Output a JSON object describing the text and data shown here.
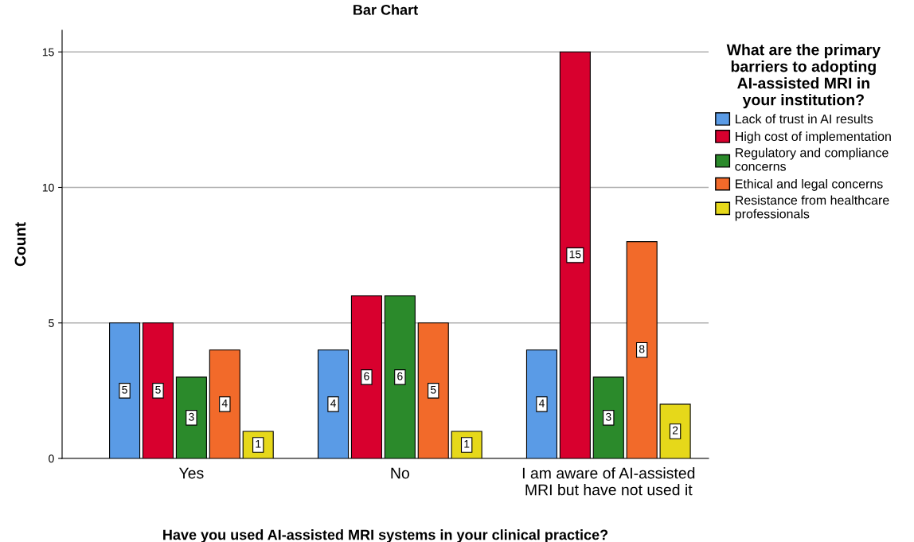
{
  "chart_data": {
    "type": "bar",
    "title": "Bar Chart",
    "xlabel": "Have you used AI-assisted MRI systems in your clinical practice?",
    "ylabel": "Count",
    "legend_title": "What are the primary\nbarriers to adopting\nAI-assisted MRI in\nyour institution?",
    "categories": [
      "Yes",
      "No",
      "I am aware of AI-assisted\nMRI but have not used it"
    ],
    "series": [
      {
        "name": "Lack of trust in AI results",
        "color": "#5a9be6",
        "values": [
          5,
          4,
          4
        ]
      },
      {
        "name": "High cost of implementation",
        "color": "#d8002e",
        "values": [
          5,
          6,
          15
        ]
      },
      {
        "name": "Regulatory and compliance\nconcerns",
        "color": "#2b8a2b",
        "values": [
          3,
          6,
          3
        ]
      },
      {
        "name": "Ethical and legal concerns",
        "color": "#f26a2a",
        "values": [
          4,
          5,
          8
        ]
      },
      {
        "name": "Resistance from healthcare\nprofessionals",
        "color": "#e6d81a",
        "values": [
          1,
          1,
          2
        ]
      }
    ],
    "ylim": [
      0,
      15.8
    ],
    "yticks": [
      0,
      5,
      10,
      15
    ],
    "grid": "y",
    "legend": "right",
    "data_labels": true
  }
}
